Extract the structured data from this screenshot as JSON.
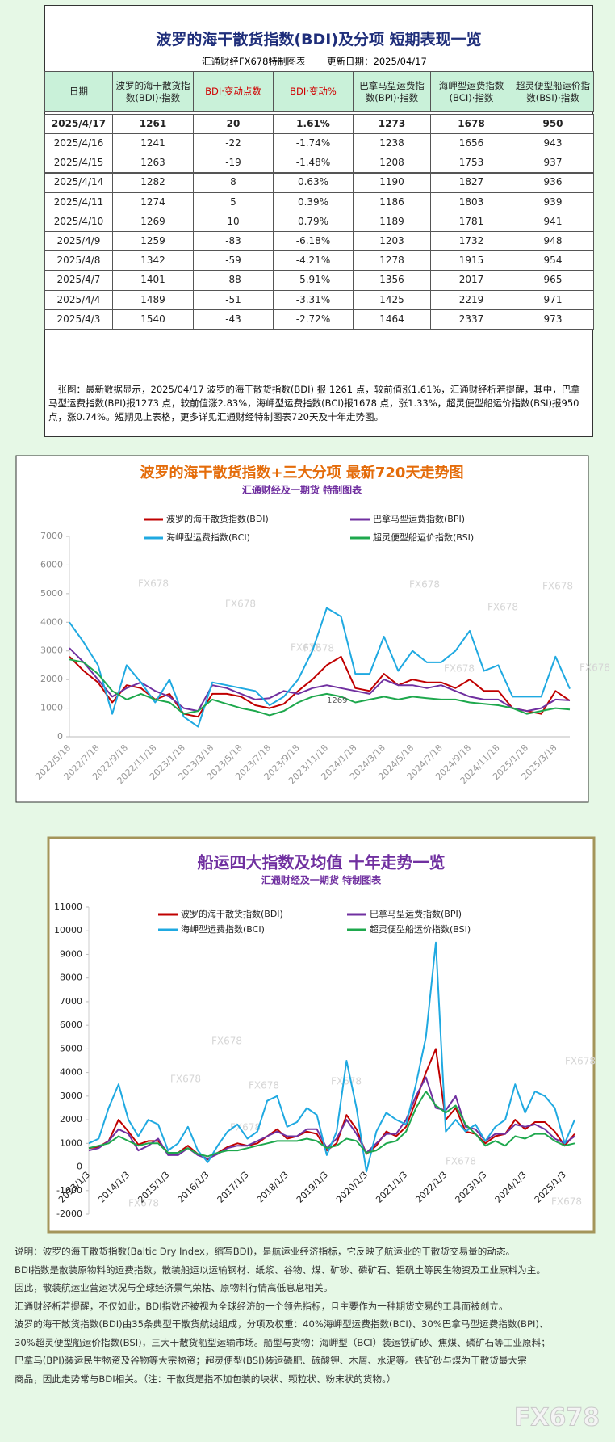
{
  "table": {
    "title": "波罗的海干散货指数(BDI)及分项  短期表现一览",
    "subtitle": "汇通财经FX678特制图表",
    "update": "更新日期：2025/04/17",
    "header": [
      "日期",
      "波罗的海干散货指数(BDI)·指数",
      "BDI·变动点数",
      "BDI·变动%",
      "巴拿马型运费指数(BPI)·指数",
      "海岬型运费指数(BCI)·指数",
      "超灵便型船运价指数(BSI)·指数"
    ],
    "rows": [
      [
        "2025/4/17",
        1261,
        20,
        "1.61%",
        1273,
        1678,
        950
      ],
      [
        "2025/4/16",
        1241,
        -22,
        "-1.74%",
        1238,
        1656,
        943
      ],
      [
        "2025/4/15",
        1263,
        -19,
        "-1.48%",
        1208,
        1753,
        937
      ],
      [
        "2025/4/14",
        1282,
        8,
        "0.63%",
        1190,
        1827,
        936
      ],
      [
        "2025/4/11",
        1274,
        5,
        "0.39%",
        1186,
        1803,
        939
      ],
      [
        "2025/4/10",
        1269,
        10,
        "0.79%",
        1189,
        1781,
        941
      ],
      [
        "2025/4/9",
        1259,
        -83,
        "-6.18%",
        1203,
        1732,
        948
      ],
      [
        "2025/4/8",
        1342,
        -59,
        "-4.21%",
        1278,
        1915,
        954
      ],
      [
        "2025/4/7",
        1401,
        -88,
        "-5.91%",
        1356,
        2017,
        965
      ],
      [
        "2025/4/4",
        1489,
        -51,
        "-3.31%",
        1425,
        2219,
        971
      ],
      [
        "2025/4/3",
        1540,
        -43,
        "-2.72%",
        1464,
        2337,
        973
      ]
    ],
    "note": "一张图：最新数据显示，2025/04/17 波罗的海干散货指数(BDI) 报 1261 点，较前值涨1.61%，汇通财经析若提醒，其中，巴拿马型运费指数(BPI)报1273 点，较前值涨2.83%，海岬型运费指数(BCI)报1678 点，涨1.33%，超灵便型船运价指数(BSI)报950 点，涨0.74%。短期见上表格，更多详见汇通财经特制图表720天及十年走势图。"
  },
  "chart_data": [
    {
      "type": "line",
      "title": "波罗的海干散货指数+三大分项  最新720天走势图",
      "subtitle": "汇通财经及一期货  特制图表",
      "watermark": "FX678",
      "legend": "top",
      "grid": false,
      "categories": [
        "2022/5/18",
        null,
        "2022/7/18",
        null,
        "2022/9/18",
        null,
        "2022/11/18",
        null,
        "2023/1/18",
        null,
        "2023/3/18",
        null,
        "2023/5/18",
        null,
        "2023/7/18",
        null,
        "2023/9/18",
        null,
        "2023/11/18",
        null,
        "2024/1/18",
        null,
        "2024/3/18",
        null,
        "2024/5/18",
        null,
        "2024/7/18",
        null,
        "2024/9/18",
        null,
        "2024/11/18",
        null,
        "2025/1/18",
        null,
        "2025/3/18",
        null
      ],
      "ylim": [
        0,
        7000
      ],
      "yticks": [
        0,
        1000,
        2000,
        3000,
        4000,
        5000,
        6000,
        7000
      ],
      "annotation": {
        "label": "1269",
        "value": 1269
      },
      "series": [
        {
          "name": "波罗的海干散货指数(BDI)",
          "color": "#c00000",
          "values": [
            2800,
            2300,
            1900,
            1200,
            1800,
            1700,
            1300,
            1500,
            800,
            700,
            1500,
            1500,
            1400,
            1100,
            1000,
            1150,
            1600,
            2000,
            2500,
            2800,
            1700,
            1600,
            2200,
            1800,
            2000,
            1900,
            1900,
            1700,
            2000,
            1600,
            1600,
            1000,
            900,
            800,
            1600,
            1261
          ]
        },
        {
          "name": "巴拿马型运费指数(BPI)",
          "color": "#7030a0",
          "values": [
            3100,
            2600,
            2000,
            1400,
            1700,
            1900,
            1600,
            1400,
            1000,
            900,
            1800,
            1700,
            1500,
            1300,
            1350,
            1600,
            1500,
            1700,
            1800,
            1700,
            1600,
            1500,
            2000,
            1800,
            1800,
            1700,
            1800,
            1600,
            1400,
            1300,
            1300,
            1000,
            900,
            1000,
            1300,
            1273
          ]
        },
        {
          "name": "海岬型运费指数(BCI)",
          "color": "#1fa9e1",
          "values": [
            4000,
            3300,
            2500,
            800,
            2500,
            1900,
            1200,
            2000,
            700,
            350,
            1900,
            1800,
            1700,
            1600,
            1100,
            1400,
            2000,
            3000,
            4500,
            4200,
            2200,
            2200,
            3500,
            2300,
            3000,
            2600,
            2600,
            3000,
            3700,
            2300,
            2500,
            1400,
            1400,
            1400,
            2800,
            1678
          ]
        },
        {
          "name": "超灵便型船运价指数(BSI)",
          "color": "#1ea84d",
          "values": [
            2700,
            2600,
            2200,
            1600,
            1300,
            1500,
            1300,
            1200,
            800,
            900,
            1300,
            1150,
            1000,
            900,
            750,
            900,
            1200,
            1400,
            1500,
            1400,
            1200,
            1300,
            1400,
            1300,
            1400,
            1350,
            1300,
            1300,
            1200,
            1150,
            1100,
            1000,
            800,
            900,
            1000,
            950
          ]
        }
      ]
    },
    {
      "type": "line",
      "title": "船运四大指数及均值  十年走势一览",
      "subtitle": "汇通财经及一期货  特制图表",
      "watermark": "FX678",
      "legend": "top",
      "grid": false,
      "categories": [
        "2013/1/3",
        null,
        null,
        null,
        "2014/1/3",
        null,
        null,
        null,
        "2015/1/3",
        null,
        null,
        null,
        "2016/1/3",
        null,
        null,
        null,
        "2017/1/3",
        null,
        null,
        null,
        "2018/1/3",
        null,
        null,
        null,
        "2019/1/3",
        null,
        null,
        null,
        "2020/1/3",
        null,
        null,
        null,
        "2021/1/3",
        null,
        null,
        null,
        "2022/1/3",
        null,
        null,
        null,
        "2023/1/3",
        null,
        null,
        null,
        "2024/1/3",
        null,
        null,
        null,
        "2025/1/3",
        null
      ],
      "ylim": [
        -2000,
        11000
      ],
      "yticks": [
        -2000,
        -1000,
        0,
        1000,
        2000,
        3000,
        4000,
        5000,
        6000,
        7000,
        8000,
        9000,
        10000,
        11000
      ],
      "series": [
        {
          "name": "波罗的海干散货指数(BDI)",
          "color": "#c00000",
          "values": [
            800,
            850,
            1100,
            2000,
            1500,
            950,
            1100,
            1100,
            600,
            600,
            900,
            550,
            320,
            600,
            850,
            1000,
            900,
            1000,
            1300,
            1600,
            1200,
            1300,
            1500,
            1400,
            700,
            1000,
            2200,
            1600,
            550,
            900,
            1500,
            1300,
            1700,
            2800,
            4000,
            5000,
            2000,
            2500,
            1500,
            1400,
            1000,
            1300,
            1400,
            2000,
            1600,
            1900,
            1900,
            1500,
            900,
            1400
          ]
        },
        {
          "name": "巴拿马型运费指数(BPI)",
          "color": "#7030a0",
          "values": [
            700,
            800,
            1100,
            1600,
            1400,
            700,
            900,
            1200,
            500,
            500,
            800,
            500,
            350,
            550,
            800,
            900,
            900,
            1100,
            1300,
            1500,
            1300,
            1300,
            1600,
            1600,
            800,
            1200,
            2000,
            1400,
            600,
            1000,
            1400,
            1400,
            2000,
            3000,
            3800,
            2500,
            2400,
            3000,
            1700,
            1600,
            1100,
            1400,
            1400,
            1800,
            1700,
            1800,
            1600,
            1200,
            1000,
            1300
          ]
        },
        {
          "name": "海岬型运费指数(BCI)",
          "color": "#1fa9e1",
          "values": [
            1000,
            1200,
            2500,
            3500,
            2000,
            1300,
            2000,
            1800,
            700,
            1000,
            1700,
            700,
            200,
            900,
            1500,
            1800,
            1200,
            1500,
            2800,
            3000,
            1700,
            1900,
            2500,
            2200,
            500,
            1500,
            4500,
            2500,
            -200,
            1500,
            2300,
            2000,
            1800,
            3500,
            5500,
            9500,
            1500,
            2000,
            1500,
            1800,
            1100,
            1700,
            2000,
            3500,
            2300,
            3200,
            3000,
            2500,
            1000,
            2000
          ]
        },
        {
          "name": "超灵便型船运价指数(BSI)",
          "color": "#1ea84d",
          "values": [
            800,
            900,
            1000,
            1300,
            1100,
            900,
            1000,
            1000,
            600,
            600,
            800,
            550,
            450,
            600,
            700,
            700,
            800,
            900,
            1000,
            1100,
            1100,
            1100,
            1200,
            1100,
            800,
            900,
            1200,
            1100,
            600,
            700,
            1000,
            1100,
            1500,
            2500,
            3200,
            2600,
            2300,
            2600,
            1800,
            1400,
            900,
            1100,
            900,
            1300,
            1200,
            1400,
            1400,
            1100,
            900,
            1000
          ]
        }
      ]
    }
  ],
  "notes": [
    "说明：波罗的海干散货指数(Baltic Dry Index，缩写BDI)，是航运业经济指标，它反映了航运业的干散货交易量的动态。",
    "BDI指数是散装原物料的运费指数，散装船运以运输钢材、纸浆、谷物、煤、矿砂、磷矿石、铝矾土等民生物资及工业原料为主。",
    "因此，散装航运业营运状况与全球经济景气荣枯、原物料行情高低息息相关。",
    "汇通财经析若提醒，不仅如此，BDI指数还被视为全球经济的一个领先指标，且主要作为一种期货交易的工具而被创立。",
    "波罗的海干散货指数(BDI)由35条典型干散货航线组成，分项及权重：40%海岬型运费指数(BCI)、30%巴拿马型运费指数(BPI)、",
    "30%超灵便型船运价指数(BSI)，三大干散货船型运输市场。船型与货物：海岬型（BCI）装运铁矿砂、焦煤、磷矿石等工业原料；",
    "巴拿马(BPI)装运民生物资及谷物等大宗物资；超灵便型(BSI)装运磷肥、碳酸钾、木屑、水泥等。铁矿砂与煤为干散货最大宗",
    "商品，因此走势常与BDI相关。（注：干散货是指不加包装的块状、颗粒状、粉末状的货物。）"
  ],
  "logo": "FX678"
}
